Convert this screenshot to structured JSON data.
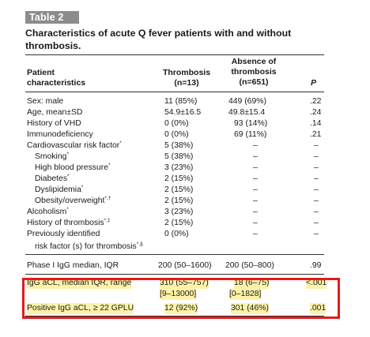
{
  "table_badge": "Table 2",
  "title": "Characteristics of acute Q fever patients with and without thrombosis.",
  "headers": {
    "patient_line1": "Patient",
    "patient_line2": "characteristics",
    "thrombosis_line1": "Thrombosis",
    "thrombosis_line2": "(n=13)",
    "absence_line1": "Absence of",
    "absence_line2": "thrombosis",
    "absence_line3": "(n=651)",
    "p": "P"
  },
  "rows": [
    {
      "label": "Sex: male",
      "mark": "",
      "thrombosis": "11 (85%)",
      "absence": "449 (69%)",
      "p": ".22"
    },
    {
      "label": "Age, mean±SD",
      "mark": "",
      "thrombosis": "54.9±16.5",
      "absence": "49.8±15.4",
      "p": ".24"
    },
    {
      "label": "History of VHD",
      "mark": "",
      "thrombosis": "0 (0%)",
      "absence": "93 (14%)",
      "p": ".14"
    },
    {
      "label": "Immunodeficiency",
      "mark": "",
      "thrombosis": "0 (0%)",
      "absence": "69 (11%)",
      "p": ".21"
    },
    {
      "label": "Cardiovascular risk factor",
      "mark": "*",
      "thrombosis": "5 (38%)",
      "absence": "–",
      "p": "–"
    },
    {
      "label": "Smoking",
      "mark": "*",
      "thrombosis": "5 (38%)",
      "absence": "–",
      "p": "–"
    },
    {
      "label": "High blood pressure",
      "mark": "*",
      "thrombosis": "3 (23%)",
      "absence": "–",
      "p": "–"
    },
    {
      "label": "Diabetes",
      "mark": "*",
      "thrombosis": "2 (15%)",
      "absence": "–",
      "p": "–"
    },
    {
      "label": "Dyslipidemia",
      "mark": "*",
      "thrombosis": "2 (15%)",
      "absence": "–",
      "p": "–"
    },
    {
      "label": "Obesity/overweight",
      "mark": "*,†",
      "thrombosis": "2 (15%)",
      "absence": "–",
      "p": "–"
    },
    {
      "label": "Alcoholism",
      "mark": "*",
      "thrombosis": "3 (23%)",
      "absence": "–",
      "p": "–"
    },
    {
      "label": "History of thrombosis",
      "mark": "*,‡",
      "thrombosis": "2 (15%)",
      "absence": "–",
      "p": "–"
    },
    {
      "label": "Previously identified",
      "mark": "",
      "thrombosis": "0 (0%)",
      "absence": "–",
      "p": "–"
    },
    {
      "label": "risk factor (s) for thrombosis",
      "mark": "*,§",
      "thrombosis": "",
      "absence": "",
      "p": ""
    },
    {
      "label": "Phase I IgG median, IQR",
      "mark": "",
      "thrombosis": "200 (50–1600)",
      "absence": "200 (50–800)",
      "p": ".99"
    },
    {
      "label": "IgG aCL, median IQR, range",
      "mark": "",
      "thrombosis": "310 (55–757)",
      "absence": "18 (6–75)",
      "p": "<.001"
    },
    {
      "label": "",
      "mark": "",
      "thrombosis": "[9–13000]",
      "absence": "[0–1828]",
      "p": ""
    },
    {
      "label": "Positive IgG aCL, ≥ 22 GPLU",
      "mark": "",
      "thrombosis": "12 (92%)",
      "absence": "301 (46%)",
      "p": ".001"
    }
  ]
}
